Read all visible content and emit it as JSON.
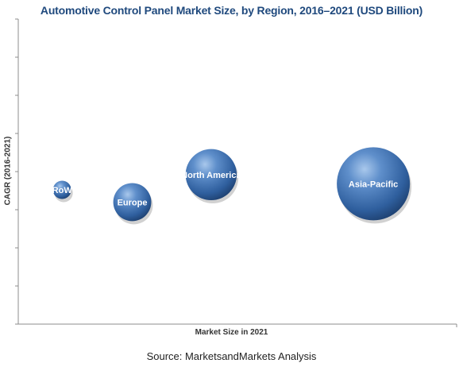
{
  "chart_data": {
    "type": "bubble",
    "title": "Automotive Control Panel Market Size, by Region, 2016–2021 (USD Billion)",
    "xlabel": "Market Size in 2021",
    "ylabel": "CAGR (2016-2021)",
    "grid": false,
    "axis_ticks_labeled": false,
    "bubble_color": "#3b6fb0",
    "series": [
      {
        "name": "RoW",
        "x": 0.1,
        "y": 0.44,
        "size": 0.25
      },
      {
        "name": "Europe",
        "x": 0.26,
        "y": 0.4,
        "size": 0.52
      },
      {
        "name": "North America",
        "x": 0.44,
        "y": 0.49,
        "size": 0.7
      },
      {
        "name": "Asia-Pacific",
        "x": 0.81,
        "y": 0.46,
        "size": 1.0
      }
    ]
  },
  "source": "Source: MarketsandMarkets Analysis"
}
